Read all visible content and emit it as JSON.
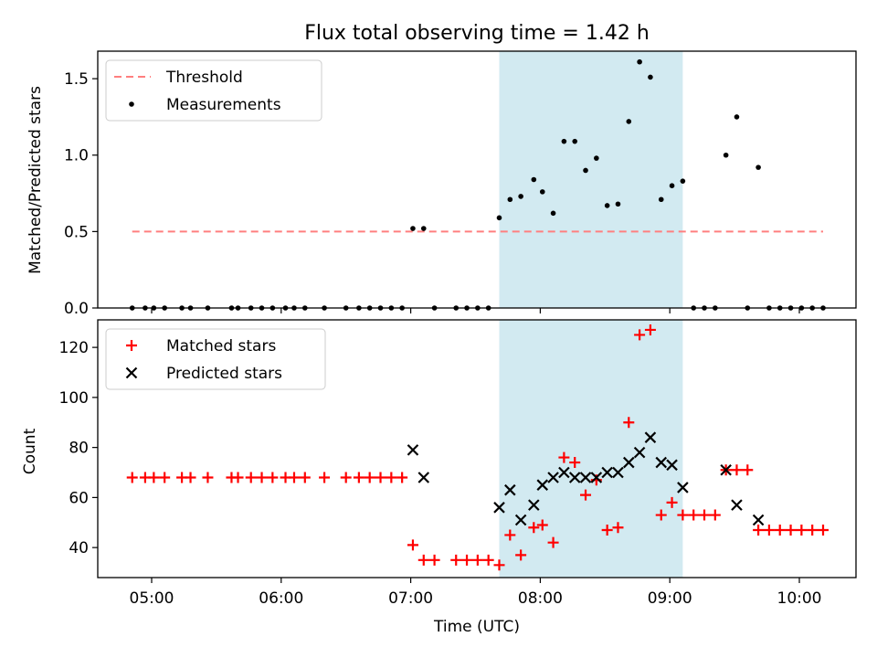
{
  "chart_data": {
    "title": "Flux total observing time = 1.42 h",
    "xlabel": "Time (UTC)",
    "x_ticks": [
      "05:00",
      "06:00",
      "07:00",
      "08:00",
      "09:00",
      "10:00"
    ],
    "highlight_span": {
      "start": "07:41",
      "end": "09:06",
      "color": "#add8e6"
    },
    "panels": [
      {
        "type": "scatter",
        "ylabel": "Matched/Predicted stars",
        "ylim": [
          0,
          1.68
        ],
        "y_ticks": [
          "0.0",
          "0.5",
          "1.0",
          "1.5"
        ],
        "grid": false,
        "legend_position": "top-left",
        "series": [
          {
            "name": "Threshold",
            "style": "dashed-line",
            "color": "#ff7f7f",
            "points": [
              [
                "04:51",
                0.5
              ],
              [
                "10:11",
                0.5
              ]
            ]
          },
          {
            "name": "Measurements",
            "style": "dot",
            "color": "#000000",
            "points": [
              [
                "04:51",
                0
              ],
              [
                "04:57",
                0
              ],
              [
                "05:01",
                0
              ],
              [
                "05:06",
                0
              ],
              [
                "05:14",
                0
              ],
              [
                "05:18",
                0
              ],
              [
                "05:26",
                0
              ],
              [
                "05:37",
                0
              ],
              [
                "05:40",
                0
              ],
              [
                "05:46",
                0
              ],
              [
                "05:51",
                0
              ],
              [
                "05:56",
                0
              ],
              [
                "06:02",
                0
              ],
              [
                "06:06",
                0
              ],
              [
                "06:11",
                0
              ],
              [
                "06:20",
                0
              ],
              [
                "06:30",
                0
              ],
              [
                "06:36",
                0
              ],
              [
                "06:41",
                0
              ],
              [
                "06:46",
                0
              ],
              [
                "06:51",
                0
              ],
              [
                "06:56",
                0
              ],
              [
                "07:01",
                0.52
              ],
              [
                "07:06",
                0.52
              ],
              [
                "07:11",
                0
              ],
              [
                "07:21",
                0
              ],
              [
                "07:26",
                0
              ],
              [
                "07:31",
                0
              ],
              [
                "07:36",
                0
              ],
              [
                "07:41",
                0.59
              ],
              [
                "07:46",
                0.71
              ],
              [
                "07:51",
                0.73
              ],
              [
                "07:57",
                0.84
              ],
              [
                "08:01",
                0.76
              ],
              [
                "08:06",
                0.62
              ],
              [
                "08:11",
                1.09
              ],
              [
                "08:16",
                1.09
              ],
              [
                "08:21",
                0.9
              ],
              [
                "08:26",
                0.98
              ],
              [
                "08:31",
                0.67
              ],
              [
                "08:36",
                0.68
              ],
              [
                "08:41",
                1.22
              ],
              [
                "08:46",
                1.61
              ],
              [
                "08:51",
                1.51
              ],
              [
                "08:56",
                0.71
              ],
              [
                "09:01",
                0.8
              ],
              [
                "09:06",
                0.83
              ],
              [
                "09:11",
                0
              ],
              [
                "09:16",
                0
              ],
              [
                "09:21",
                0
              ],
              [
                "09:26",
                1.0
              ],
              [
                "09:31",
                1.25
              ],
              [
                "09:36",
                0
              ],
              [
                "09:41",
                0.92
              ],
              [
                "09:46",
                0
              ],
              [
                "09:51",
                0
              ],
              [
                "09:56",
                0
              ],
              [
                "10:01",
                0
              ],
              [
                "10:06",
                0
              ],
              [
                "10:11",
                0
              ]
            ]
          }
        ]
      },
      {
        "type": "scatter",
        "ylabel": "Count",
        "ylim": [
          28,
          131
        ],
        "y_ticks": [
          "40",
          "60",
          "80",
          "100",
          "120"
        ],
        "grid": false,
        "legend_position": "top-left",
        "series": [
          {
            "name": "Matched stars",
            "style": "plus",
            "color": "#ff0000",
            "points": [
              [
                "04:51",
                68
              ],
              [
                "04:57",
                68
              ],
              [
                "05:01",
                68
              ],
              [
                "05:06",
                68
              ],
              [
                "05:14",
                68
              ],
              [
                "05:18",
                68
              ],
              [
                "05:26",
                68
              ],
              [
                "05:37",
                68
              ],
              [
                "05:40",
                68
              ],
              [
                "05:46",
                68
              ],
              [
                "05:51",
                68
              ],
              [
                "05:56",
                68
              ],
              [
                "06:02",
                68
              ],
              [
                "06:06",
                68
              ],
              [
                "06:11",
                68
              ],
              [
                "06:20",
                68
              ],
              [
                "06:30",
                68
              ],
              [
                "06:36",
                68
              ],
              [
                "06:41",
                68
              ],
              [
                "06:46",
                68
              ],
              [
                "06:51",
                68
              ],
              [
                "06:56",
                68
              ],
              [
                "07:01",
                41
              ],
              [
                "07:06",
                35
              ],
              [
                "07:11",
                35
              ],
              [
                "07:21",
                35
              ],
              [
                "07:26",
                35
              ],
              [
                "07:31",
                35
              ],
              [
                "07:36",
                35
              ],
              [
                "07:41",
                33
              ],
              [
                "07:46",
                45
              ],
              [
                "07:51",
                37
              ],
              [
                "07:57",
                48
              ],
              [
                "08:01",
                49
              ],
              [
                "08:06",
                42
              ],
              [
                "08:11",
                76
              ],
              [
                "08:16",
                74
              ],
              [
                "08:21",
                61
              ],
              [
                "08:26",
                67
              ],
              [
                "08:31",
                47
              ],
              [
                "08:36",
                48
              ],
              [
                "08:41",
                90
              ],
              [
                "08:46",
                125
              ],
              [
                "08:51",
                127
              ],
              [
                "08:56",
                53
              ],
              [
                "09:01",
                58
              ],
              [
                "09:06",
                53
              ],
              [
                "09:11",
                53
              ],
              [
                "09:16",
                53
              ],
              [
                "09:21",
                53
              ],
              [
                "09:26",
                71
              ],
              [
                "09:31",
                71
              ],
              [
                "09:36",
                71
              ],
              [
                "09:41",
                47
              ],
              [
                "09:46",
                47
              ],
              [
                "09:51",
                47
              ],
              [
                "09:56",
                47
              ],
              [
                "10:01",
                47
              ],
              [
                "10:06",
                47
              ],
              [
                "10:11",
                47
              ]
            ]
          },
          {
            "name": "Predicted stars",
            "style": "x",
            "color": "#000000",
            "points": [
              [
                "07:01",
                79
              ],
              [
                "07:06",
                68
              ],
              [
                "07:41",
                56
              ],
              [
                "07:46",
                63
              ],
              [
                "07:51",
                51
              ],
              [
                "07:57",
                57
              ],
              [
                "08:01",
                65
              ],
              [
                "08:06",
                68
              ],
              [
                "08:11",
                70
              ],
              [
                "08:16",
                68
              ],
              [
                "08:21",
                68
              ],
              [
                "08:26",
                68
              ],
              [
                "08:31",
                70
              ],
              [
                "08:36",
                70
              ],
              [
                "08:41",
                74
              ],
              [
                "08:46",
                78
              ],
              [
                "08:51",
                84
              ],
              [
                "08:56",
                74
              ],
              [
                "09:01",
                73
              ],
              [
                "09:06",
                64
              ],
              [
                "09:26",
                71
              ],
              [
                "09:31",
                57
              ],
              [
                "09:41",
                51
              ]
            ]
          }
        ]
      }
    ]
  }
}
